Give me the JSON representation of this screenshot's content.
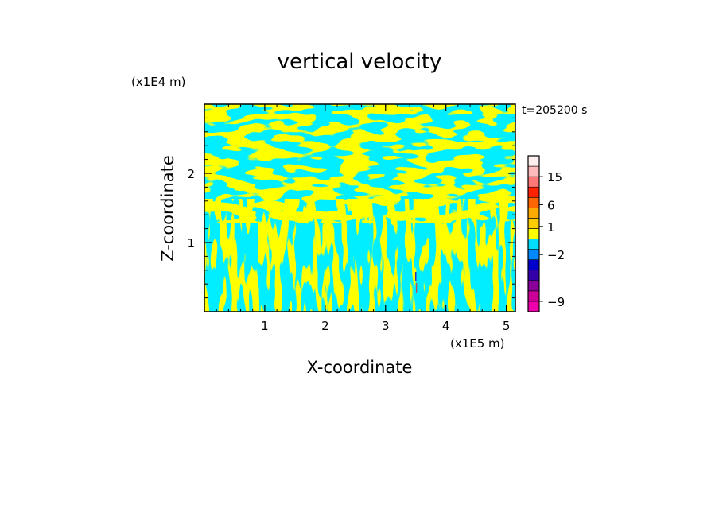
{
  "chart_data": {
    "type": "heatmap",
    "title": "vertical velocity",
    "xlabel": "X-coordinate",
    "ylabel": "Z-coordinate",
    "x_unit": "(x1E5 m)",
    "y_unit": "(x1E4 m)",
    "time_label": "t=205200 s",
    "xlim": [
      0,
      5.15
    ],
    "ylim": [
      0,
      3.0
    ],
    "x_ticks": [
      1,
      2,
      3,
      4,
      5
    ],
    "y_ticks": [
      1,
      2
    ],
    "x_tick_labels": [
      "1",
      "2",
      "3",
      "4",
      "5"
    ],
    "y_tick_labels": [
      "1",
      "2"
    ],
    "field_colors": {
      "positive": "#ffff00",
      "negative": "#00eeff",
      "strong_updraft": "#ff2020",
      "strong_downdraft": "#3030c0"
    },
    "colorbar": {
      "levels": [
        {
          "color": "#ee00aa"
        },
        {
          "color": "#cc0099"
        },
        {
          "color": "#880099"
        },
        {
          "color": "#3300aa"
        },
        {
          "color": "#0000cc"
        },
        {
          "color": "#0088ff"
        },
        {
          "color": "#00ddff"
        },
        {
          "color": "#ffff00"
        },
        {
          "color": "#ffcc00"
        },
        {
          "color": "#ffaa00"
        },
        {
          "color": "#ff6600"
        },
        {
          "color": "#ff2200"
        },
        {
          "color": "#ff7777"
        },
        {
          "color": "#ffbbbb"
        },
        {
          "color": "#ffeeee"
        }
      ],
      "tick_labels": [
        {
          "value": -9,
          "text": "−9",
          "level_index": 1
        },
        {
          "value": -2,
          "text": "−2",
          "level_index": 5.5
        },
        {
          "value": 1,
          "text": "1",
          "level_index": 8.2
        },
        {
          "value": 6,
          "text": "6",
          "level_index": 10.3
        },
        {
          "value": 15,
          "text": "15",
          "level_index": 13
        }
      ]
    }
  }
}
